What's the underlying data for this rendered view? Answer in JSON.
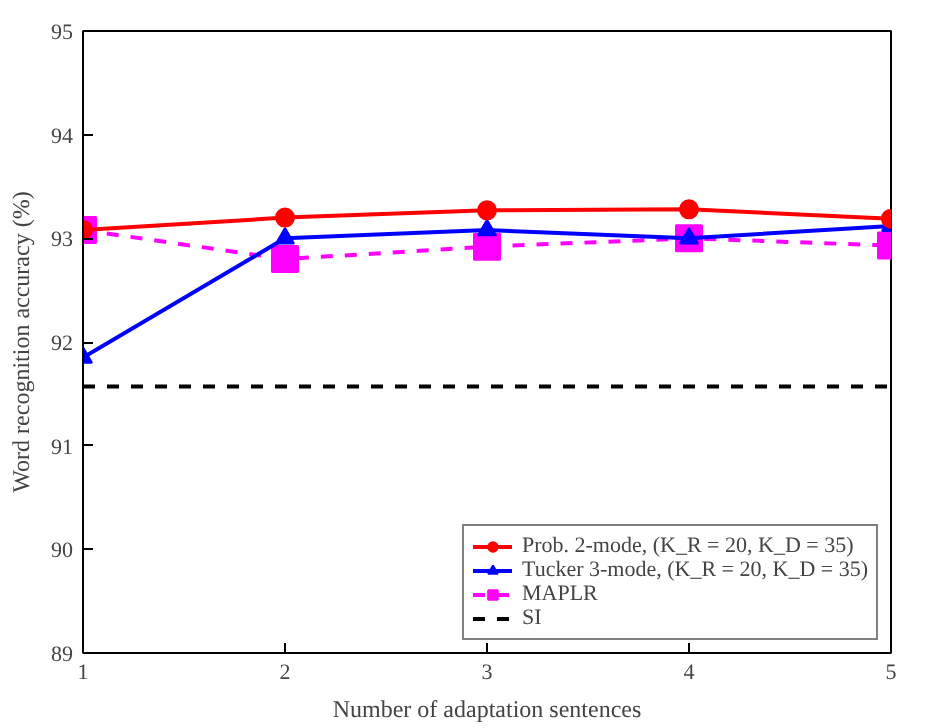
{
  "chart_data": {
    "type": "line",
    "xlabel": "Number of adaptation sentences",
    "ylabel": "Word recognition accuracy (%)",
    "x": [
      1,
      2,
      3,
      4,
      5
    ],
    "xlim": [
      1,
      5
    ],
    "xticks": [
      1,
      2,
      3,
      4,
      5
    ],
    "ylim": [
      89,
      95
    ],
    "yticks": [
      89,
      90,
      91,
      92,
      93,
      94,
      95
    ],
    "grid": false,
    "legend": "bottom right",
    "series": [
      {
        "name": "Prob. 2-mode, (K_R = 20, K_D = 35)",
        "color": "#ff0000",
        "marker": "circle",
        "line_style": "solid",
        "values": [
          93.08,
          93.2,
          93.27,
          93.28,
          93.19
        ]
      },
      {
        "name": "Tucker 3-mode, (K_R = 20, K_D = 35)",
        "color": "#0000ff",
        "marker": "triangle",
        "line_style": "solid",
        "values": [
          91.85,
          93.0,
          93.08,
          93.0,
          93.12
        ]
      },
      {
        "name": "MAPLR",
        "color": "#ff00ff",
        "marker": "square",
        "line_style": "dashed",
        "values": [
          93.08,
          92.8,
          92.92,
          93.0,
          92.93
        ]
      },
      {
        "name": "SI",
        "color": "#000000",
        "marker": "none",
        "line_style": "dashed",
        "values": [
          91.57,
          91.57,
          91.57,
          91.57,
          91.57
        ]
      }
    ]
  }
}
